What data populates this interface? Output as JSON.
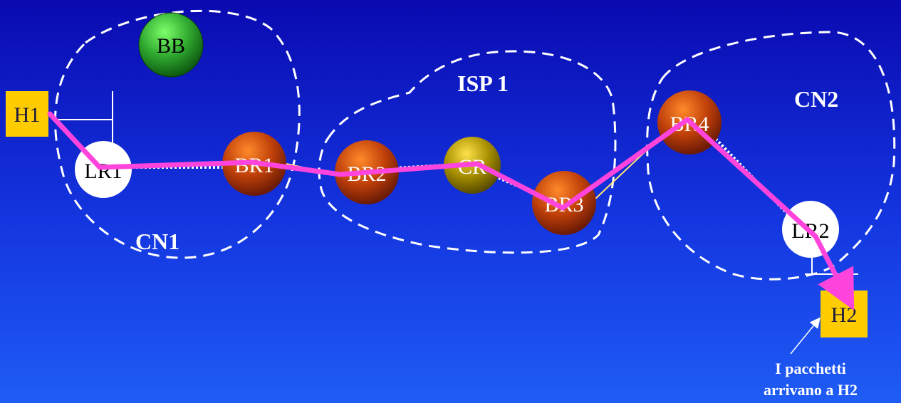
{
  "regions": {
    "cn1": "CN1",
    "isp1": "ISP 1",
    "cn2": "CN2"
  },
  "hosts": {
    "h1": "H1",
    "h2": "H2"
  },
  "nodes": {
    "bb": "BB",
    "lr1": "LR1",
    "br1": "BR1",
    "br2": "BR2",
    "cr": "CR",
    "br3": "BR3",
    "br4": "BR4",
    "lr2": "LR2"
  },
  "caption": {
    "line1": "I pacchetti",
    "line2": "arrivano a H2"
  },
  "colors": {
    "background_top": "#0a0ab0",
    "background_bottom": "#1f5cf5",
    "host_fill": "#ffcc00",
    "bandwidth_broker": "#2fa82f",
    "border_router": "#b23a0a",
    "core_router": "#a89000",
    "leaf_router": "#ffffff",
    "packet_path": "#ff44dd"
  }
}
